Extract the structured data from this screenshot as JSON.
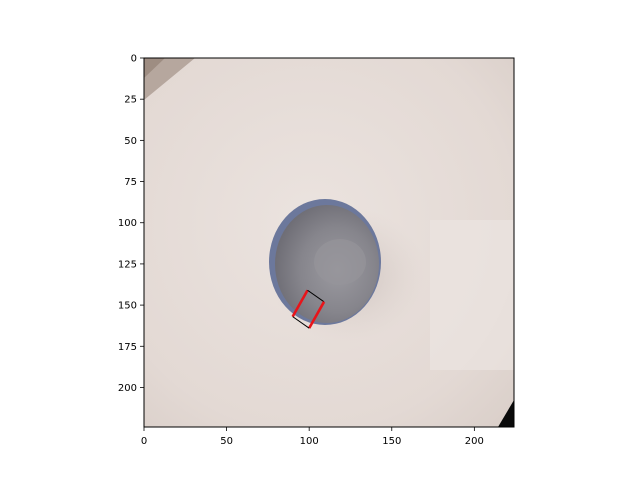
{
  "axes": {
    "x_ticks": [
      "0",
      "50",
      "100",
      "150",
      "200"
    ],
    "y_ticks": [
      "0",
      "25",
      "50",
      "75",
      "100",
      "125",
      "150",
      "175",
      "200"
    ],
    "x_tick_values": [
      0,
      50,
      100,
      150,
      200
    ],
    "y_tick_values": [
      0,
      25,
      50,
      75,
      100,
      125,
      150,
      175,
      200
    ],
    "xlim": [
      0,
      224
    ],
    "ylim": [
      224,
      0
    ]
  },
  "scene": {
    "object": "bowl",
    "background": "table-top",
    "colors": {
      "table": "#e6dcd8",
      "bowl_rim": "#6f7a9e",
      "bowl_inner": "#8d8c92"
    }
  },
  "annotations": {
    "grasp_box": {
      "corners": [
        [
          90,
          157
        ],
        [
          99,
          141
        ],
        [
          109,
          148
        ],
        [
          100,
          164
        ]
      ],
      "colors": {
        "long_edges": "#e8141a",
        "short_edges": "#000000"
      }
    }
  }
}
